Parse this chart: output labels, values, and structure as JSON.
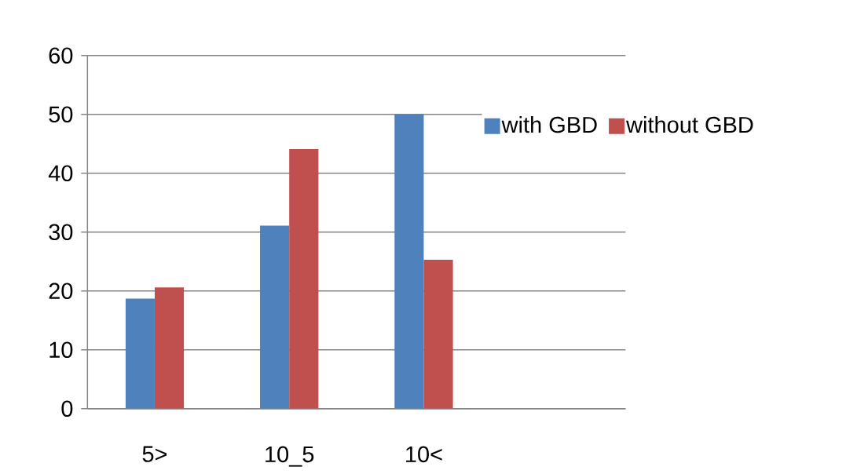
{
  "chart_data": {
    "type": "bar",
    "categories": [
      "5>",
      "10_5",
      "10<",
      null
    ],
    "series": [
      {
        "name": "with GBD",
        "color": "#4f81bd",
        "values": [
          18.7,
          31.1,
          50,
          null
        ]
      },
      {
        "name": "without GBD",
        "color": "#c0504d",
        "values": [
          20.6,
          44.1,
          25.3,
          null
        ]
      }
    ],
    "ylim": [
      0,
      60
    ],
    "yticks": [
      0,
      10,
      20,
      30,
      40,
      50,
      60
    ],
    "grid": "y",
    "legend": "right"
  }
}
